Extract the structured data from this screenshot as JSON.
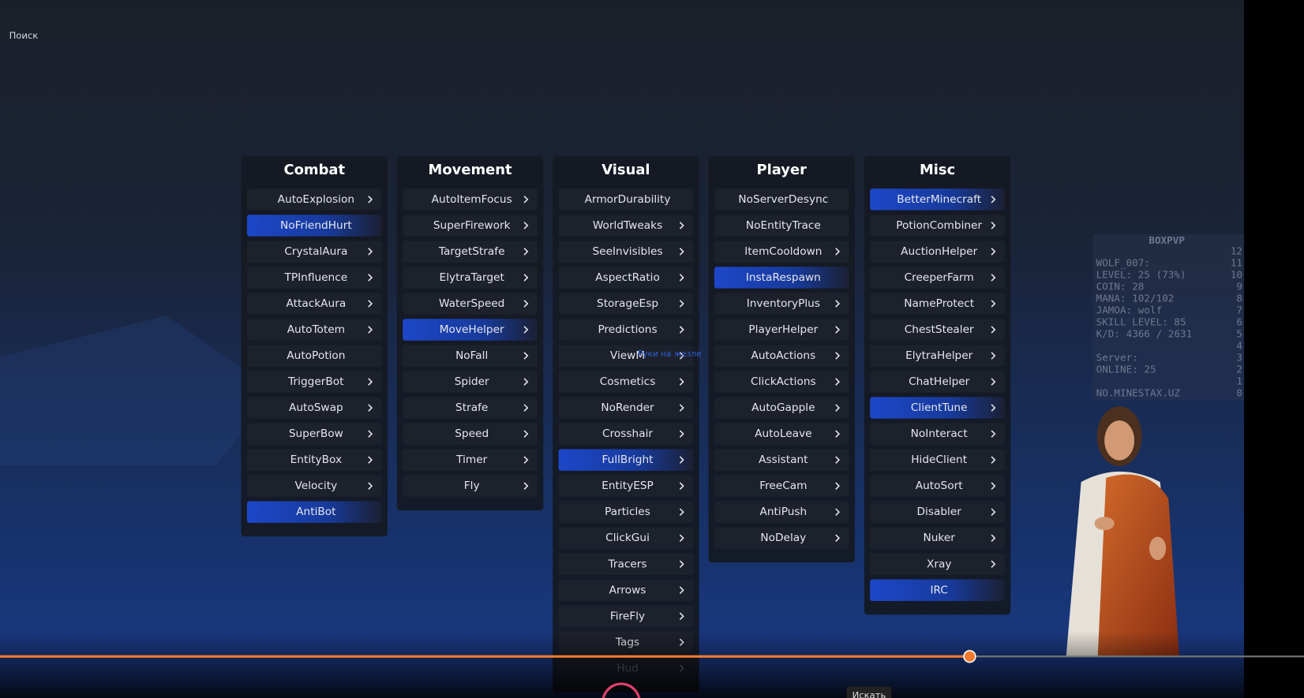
{
  "search": "Поиск",
  "columns": [
    {
      "title": "Combat",
      "modules": [
        {
          "name": "AutoExplosion",
          "enabled": false,
          "arrow": true
        },
        {
          "name": "NoFriendHurt",
          "enabled": true,
          "arrow": false
        },
        {
          "name": "CrystalAura",
          "enabled": false,
          "arrow": true
        },
        {
          "name": "TPInfluence",
          "enabled": false,
          "arrow": true
        },
        {
          "name": "AttackAura",
          "enabled": false,
          "arrow": true
        },
        {
          "name": "AutoTotem",
          "enabled": false,
          "arrow": true
        },
        {
          "name": "AutoPotion",
          "enabled": false,
          "arrow": false
        },
        {
          "name": "TriggerBot",
          "enabled": false,
          "arrow": true
        },
        {
          "name": "AutoSwap",
          "enabled": false,
          "arrow": true
        },
        {
          "name": "SuperBow",
          "enabled": false,
          "arrow": true
        },
        {
          "name": "EntityBox",
          "enabled": false,
          "arrow": true
        },
        {
          "name": "Velocity",
          "enabled": false,
          "arrow": true
        },
        {
          "name": "AntiBot",
          "enabled": true,
          "arrow": false
        }
      ]
    },
    {
      "title": "Movement",
      "modules": [
        {
          "name": "AutoItemFocus",
          "enabled": false,
          "arrow": true
        },
        {
          "name": "SuperFirework",
          "enabled": false,
          "arrow": true
        },
        {
          "name": "TargetStrafe",
          "enabled": false,
          "arrow": true
        },
        {
          "name": "ElytraTarget",
          "enabled": false,
          "arrow": true
        },
        {
          "name": "WaterSpeed",
          "enabled": false,
          "arrow": true
        },
        {
          "name": "MoveHelper",
          "enabled": true,
          "arrow": true
        },
        {
          "name": "NoFall",
          "enabled": false,
          "arrow": true
        },
        {
          "name": "Spider",
          "enabled": false,
          "arrow": true
        },
        {
          "name": "Strafe",
          "enabled": false,
          "arrow": true
        },
        {
          "name": "Speed",
          "enabled": false,
          "arrow": true
        },
        {
          "name": "Timer",
          "enabled": false,
          "arrow": true
        },
        {
          "name": "Fly",
          "enabled": false,
          "arrow": true
        }
      ]
    },
    {
      "title": "Visual",
      "modules": [
        {
          "name": "ArmorDurability",
          "enabled": false,
          "arrow": false
        },
        {
          "name": "WorldTweaks",
          "enabled": false,
          "arrow": true
        },
        {
          "name": "SeeInvisibles",
          "enabled": false,
          "arrow": true
        },
        {
          "name": "AspectRatio",
          "enabled": false,
          "arrow": true
        },
        {
          "name": "StorageEsp",
          "enabled": false,
          "arrow": true
        },
        {
          "name": "Predictions",
          "enabled": false,
          "arrow": true
        },
        {
          "name": "ViewM",
          "enabled": false,
          "arrow": true
        },
        {
          "name": "Cosmetics",
          "enabled": false,
          "arrow": true
        },
        {
          "name": "NoRender",
          "enabled": false,
          "arrow": true
        },
        {
          "name": "Crosshair",
          "enabled": false,
          "arrow": true
        },
        {
          "name": "FullBright",
          "enabled": true,
          "arrow": true
        },
        {
          "name": "EntityESP",
          "enabled": false,
          "arrow": true
        },
        {
          "name": "Particles",
          "enabled": false,
          "arrow": true
        },
        {
          "name": "ClickGui",
          "enabled": false,
          "arrow": true
        },
        {
          "name": "Tracers",
          "enabled": false,
          "arrow": true
        },
        {
          "name": "Arrows",
          "enabled": false,
          "arrow": true
        },
        {
          "name": "FireFly",
          "enabled": false,
          "arrow": true
        },
        {
          "name": "Tags",
          "enabled": false,
          "arrow": true
        },
        {
          "name": "Hud",
          "enabled": false,
          "arrow": true
        }
      ]
    },
    {
      "title": "Player",
      "modules": [
        {
          "name": "NoServerDesync",
          "enabled": false,
          "arrow": false
        },
        {
          "name": "NoEntityTrace",
          "enabled": false,
          "arrow": false
        },
        {
          "name": "ItemCooldown",
          "enabled": false,
          "arrow": true
        },
        {
          "name": "InstaRespawn",
          "enabled": true,
          "arrow": false
        },
        {
          "name": "InventoryPlus",
          "enabled": false,
          "arrow": true
        },
        {
          "name": "PlayerHelper",
          "enabled": false,
          "arrow": true
        },
        {
          "name": "AutoActions",
          "enabled": false,
          "arrow": true
        },
        {
          "name": "ClickActions",
          "enabled": false,
          "arrow": true
        },
        {
          "name": "AutoGapple",
          "enabled": false,
          "arrow": true
        },
        {
          "name": "AutoLeave",
          "enabled": false,
          "arrow": true
        },
        {
          "name": "Assistant",
          "enabled": false,
          "arrow": true
        },
        {
          "name": "FreeCam",
          "enabled": false,
          "arrow": true
        },
        {
          "name": "AntiPush",
          "enabled": false,
          "arrow": true
        },
        {
          "name": "NoDelay",
          "enabled": false,
          "arrow": true
        }
      ]
    },
    {
      "title": "Misc",
      "modules": [
        {
          "name": "BetterMinecraft",
          "enabled": true,
          "arrow": true
        },
        {
          "name": "PotionCombiner",
          "enabled": false,
          "arrow": true
        },
        {
          "name": "AuctionHelper",
          "enabled": false,
          "arrow": true
        },
        {
          "name": "CreeperFarm",
          "enabled": false,
          "arrow": true
        },
        {
          "name": "NameProtect",
          "enabled": false,
          "arrow": true
        },
        {
          "name": "ChestStealer",
          "enabled": false,
          "arrow": true
        },
        {
          "name": "ElytraHelper",
          "enabled": false,
          "arrow": true
        },
        {
          "name": "ChatHelper",
          "enabled": false,
          "arrow": true
        },
        {
          "name": "ClientTune",
          "enabled": true,
          "arrow": true
        },
        {
          "name": "NoInteract",
          "enabled": false,
          "arrow": true
        },
        {
          "name": "HideClient",
          "enabled": false,
          "arrow": true
        },
        {
          "name": "AutoSort",
          "enabled": false,
          "arrow": true
        },
        {
          "name": "Disabler",
          "enabled": false,
          "arrow": true
        },
        {
          "name": "Nuker",
          "enabled": false,
          "arrow": true
        },
        {
          "name": "Xray",
          "enabled": false,
          "arrow": true
        },
        {
          "name": "IRC",
          "enabled": true,
          "arrow": false
        }
      ]
    }
  ],
  "tooltip": "Руки на жезле",
  "scoreboard": {
    "title": "BOXPVP",
    "rows": [
      {
        "score": "12"
      },
      {
        "text": "WOLF_007:",
        "score": "11"
      },
      {
        "text": "LEVEL: 25 (73%)",
        "score": "10"
      },
      {
        "text": "COIN: 28",
        "score": "9"
      },
      {
        "text": "MANA: 102/102",
        "score": "8"
      },
      {
        "text": "JAMOA: wolf",
        "score": "7"
      },
      {
        "text": "SKILL LEVEL: 85",
        "score": "6"
      },
      {
        "text": "K/D: 4366 / 2631",
        "score": "5"
      },
      {
        "score": "4"
      },
      {
        "text": "Server:",
        "score": "3"
      },
      {
        "text": "ONLINE: 25",
        "score": "2"
      },
      {
        "score": "1"
      },
      {
        "text": "NO.MINESTAX.UZ",
        "score": "0"
      }
    ]
  },
  "player_tooltip": "Искать"
}
